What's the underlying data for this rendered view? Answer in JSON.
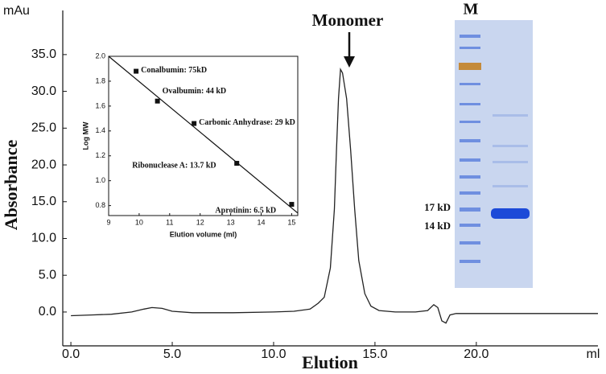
{
  "chart_data": [
    {
      "type": "line",
      "x_label": "Elution",
      "y_label": "Absorbance",
      "x_unit": "ml",
      "y_unit": "mAu",
      "annotation": "Monomer",
      "xlim": [
        -0.4,
        26
      ],
      "ylim": [
        -4.6,
        41
      ],
      "xticks": [
        {
          "value": 0,
          "label": "0.0"
        },
        {
          "value": 5,
          "label": "5.0"
        },
        {
          "value": 10,
          "label": "10.0"
        },
        {
          "value": 15,
          "label": "15.0"
        },
        {
          "value": 20,
          "label": "20.0"
        }
      ],
      "yticks": [
        {
          "value": 0,
          "label": "0.0"
        },
        {
          "value": 5,
          "label": "5.0"
        },
        {
          "value": 10,
          "label": "10.0"
        },
        {
          "value": 15,
          "label": "15.0"
        },
        {
          "value": 20,
          "label": "20.0"
        },
        {
          "value": 25,
          "label": "25.0"
        },
        {
          "value": 30,
          "label": "30.0"
        },
        {
          "value": 35,
          "label": "35.0"
        }
      ],
      "color": "#222222",
      "x": [
        0,
        1,
        2,
        3,
        3.6,
        4,
        4.5,
        5,
        6,
        8,
        10,
        11,
        11.8,
        12.2,
        12.5,
        12.8,
        13,
        13.1,
        13.2,
        13.3,
        13.4,
        13.6,
        13.8,
        14,
        14.2,
        14.5,
        14.8,
        15.2,
        16,
        17,
        17.6,
        17.9,
        18.1,
        18.3,
        18.5,
        18.7,
        19,
        21,
        23,
        26
      ],
      "values": [
        -0.5,
        -0.4,
        -0.3,
        0,
        0.4,
        0.6,
        0.5,
        0.1,
        -0.1,
        -0.1,
        0,
        0.1,
        0.4,
        1.2,
        2,
        6,
        14,
        22,
        29,
        33,
        32.5,
        29,
        22,
        14,
        7,
        2.5,
        0.8,
        0.2,
        0,
        0,
        0.2,
        1.0,
        0.6,
        -1.2,
        -1.5,
        -0.4,
        -0.2,
        -0.2,
        -0.2,
        -0.2
      ]
    },
    {
      "type": "scatter",
      "x_label": "Elution volume (ml)",
      "y_label": "Log MW",
      "xlim": [
        9,
        15.2
      ],
      "ylim": [
        0.72,
        2.0
      ],
      "xticks": [
        9,
        10,
        11,
        12,
        13,
        14,
        15
      ],
      "yticks": [
        {
          "value": 0.8,
          "label": "0.8"
        },
        {
          "value": 1.0,
          "label": "1.0"
        },
        1.2,
        1.4,
        1.6,
        1.8,
        {
          "value": 2.0,
          "label": "2.0"
        }
      ],
      "color": "#111111",
      "x": [
        9.9,
        10.6,
        11.8,
        13.2,
        15.0
      ],
      "values": [
        1.88,
        1.64,
        1.46,
        1.14,
        0.81
      ],
      "labels": [
        "Conalbumin: 75kD",
        "Ovalbumin: 44 kD",
        "Carbonic Anhydrase: 29 kD",
        "Ribonuclease A: 13.7 kD",
        "Aprotinin: 6.5 kD"
      ],
      "fit_line": {
        "x": [
          9,
          15.2
        ],
        "values": [
          2.0,
          0.74
        ]
      }
    }
  ],
  "gel": {
    "lane_label": "M",
    "markers": [
      "17 kD",
      "14 kD"
    ]
  }
}
